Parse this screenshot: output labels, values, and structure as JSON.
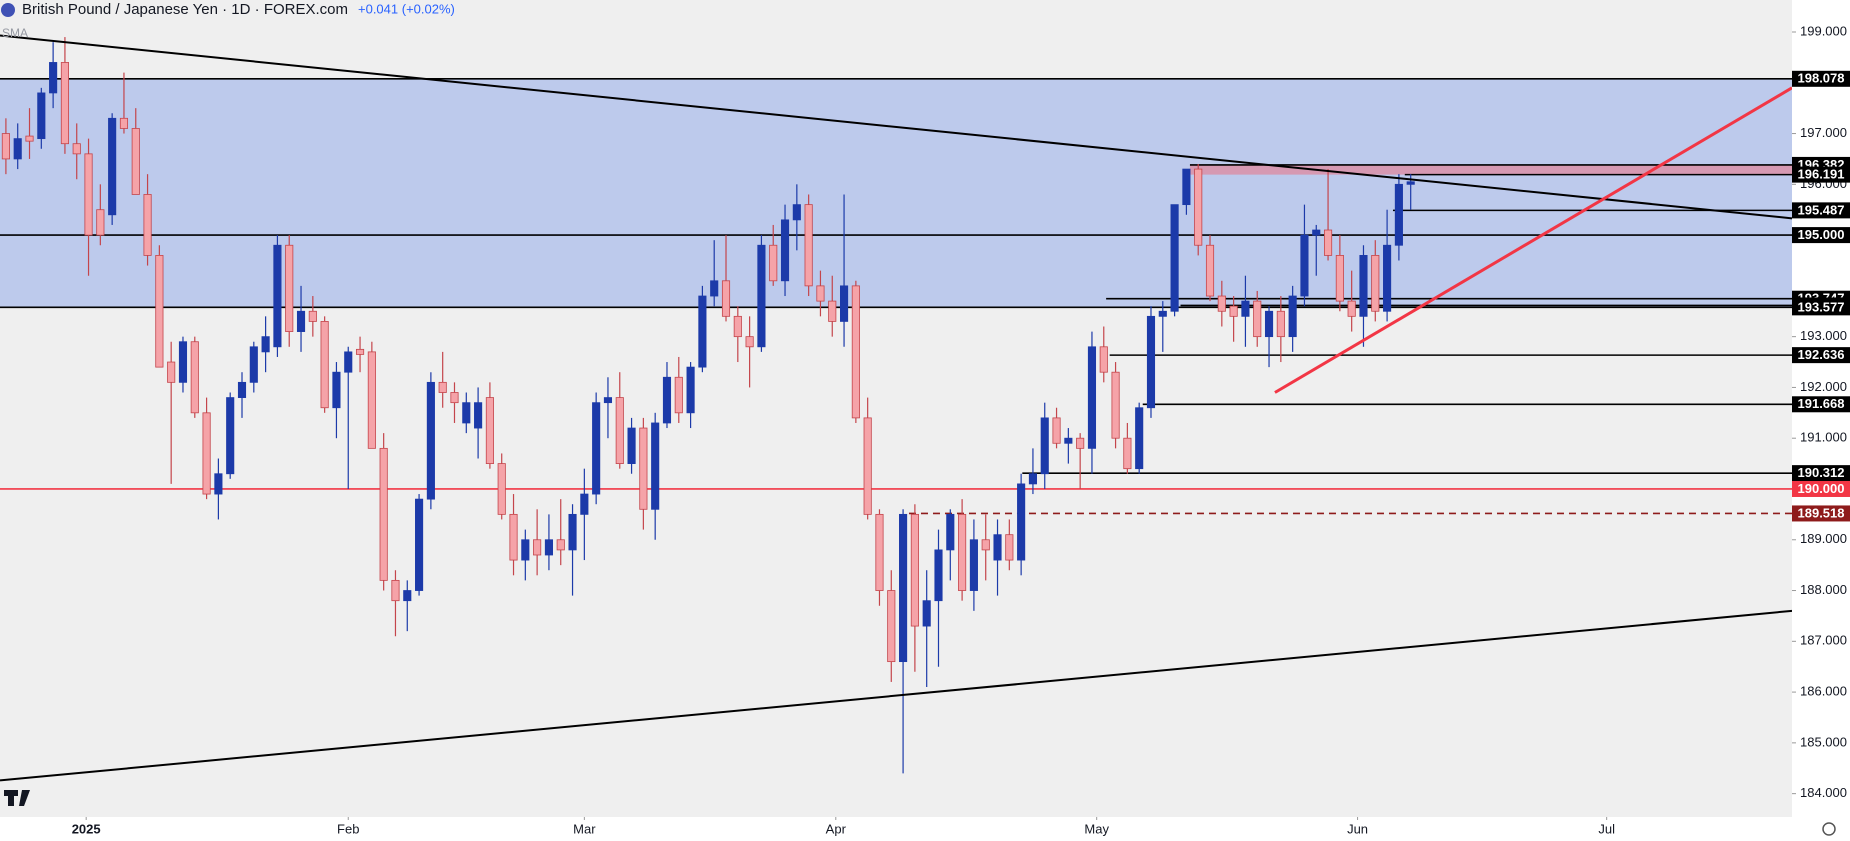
{
  "chart_data": {
    "type": "candlestick",
    "title": "British Pound / Japanese Yen · 1D · FOREX.com",
    "change": "+0.041 (+0.02%)",
    "indicator": "SMA",
    "up_color": "#1c3aa9",
    "down_color": "#f5a3a8",
    "down_border": "#c4454b",
    "xlim": [
      -0.5,
      151.3
    ],
    "ylim": [
      183.54,
      199.63
    ],
    "yticks": [
      {
        "value": 199,
        "label": "199.000"
      },
      {
        "value": 197,
        "label": "197.000"
      },
      {
        "value": 196,
        "label": "196.000"
      },
      {
        "value": 193,
        "label": "193.000"
      },
      {
        "value": 192,
        "label": "192.000"
      },
      {
        "value": 191,
        "label": "191.000"
      },
      {
        "value": 189,
        "label": "189.000"
      },
      {
        "value": 188,
        "label": "188.000"
      },
      {
        "value": 187,
        "label": "187.000"
      },
      {
        "value": 186,
        "label": "186.000"
      },
      {
        "value": 185,
        "label": "185.000"
      },
      {
        "value": 184,
        "label": "184.000"
      }
    ],
    "xticks": [
      {
        "value": 6.8,
        "label": "2025"
      },
      {
        "value": 29,
        "label": "Feb"
      },
      {
        "value": 49,
        "label": "Mar"
      },
      {
        "value": 70.3,
        "label": "Apr"
      },
      {
        "value": 92.4,
        "label": "May"
      },
      {
        "value": 114.5,
        "label": "Jun"
      },
      {
        "value": 135.6,
        "label": "Jul"
      }
    ],
    "zones": [
      {
        "low": 193.577,
        "high": 198.078,
        "from": -0.5,
        "color": "rgba(120,150,230,0.42)"
      },
      {
        "low": 196.191,
        "high": 196.382,
        "from": 100.3,
        "color": "rgba(230,120,140,0.6)"
      }
    ],
    "levels": [
      {
        "value": 198.078,
        "label": "198.078",
        "from": -0.5,
        "color": "#000000",
        "box": "#000000"
      },
      {
        "value": 196.382,
        "label": "196.382",
        "from": 100.3,
        "color": "#000000",
        "box": "#000000"
      },
      {
        "value": 196.191,
        "label": "196.191",
        "from": 118.5,
        "color": "#000000",
        "box": "#000000"
      },
      {
        "value": 195.487,
        "label": "195.487",
        "from": 117.5,
        "color": "#000000",
        "box": "#000000"
      },
      {
        "value": 195.0,
        "label": "195.000",
        "from": -0.5,
        "color": "#000000",
        "box": "#000000"
      },
      {
        "value": 193.747,
        "label": "193.747",
        "from": 93.2,
        "color": "#000000",
        "box": "#000000"
      },
      {
        "value": 193.614,
        "label": "193.614",
        "from": 99.5,
        "color": "#000000",
        "box": "#000000"
      },
      {
        "value": 193.577,
        "label": "193.577",
        "from": -0.5,
        "color": "#000000",
        "box": "#000000"
      },
      {
        "value": 192.636,
        "label": "192.636",
        "from": 93.5,
        "color": "#000000",
        "box": "#000000"
      },
      {
        "value": 191.668,
        "label": "191.668",
        "from": 96.3,
        "color": "#000000",
        "box": "#000000"
      },
      {
        "value": 190.312,
        "label": "190.312",
        "from": 86.1,
        "color": "#000000",
        "box": "#000000"
      },
      {
        "value": 190.0,
        "label": "190.000",
        "from": -0.5,
        "color": "#f23645",
        "box": "#f23645"
      },
      {
        "value": 189.518,
        "label": "189.518",
        "from": 76.5,
        "color": "#8e1b1b",
        "box": "#8e1b1b",
        "dashed": true
      }
    ],
    "trendlines": [
      {
        "x": [
          -0.5,
          151.3
        ],
        "y": [
          198.93,
          195.33
        ],
        "color": "#000000"
      },
      {
        "x": [
          -0.5,
          151.3
        ],
        "y": [
          184.26,
          187.6
        ],
        "color": "#000000"
      },
      {
        "x": [
          107.5,
          151.3
        ],
        "y": [
          191.9,
          197.9
        ],
        "color": "#f23645"
      }
    ],
    "ohlc": [
      [
        197.0,
        197.3,
        196.2,
        196.5
      ],
      [
        196.5,
        197.2,
        196.3,
        196.9
      ],
      [
        196.95,
        197.5,
        196.5,
        196.85
      ],
      [
        196.9,
        197.9,
        196.7,
        197.8
      ],
      [
        197.8,
        198.8,
        197.5,
        198.4
      ],
      [
        198.4,
        198.9,
        196.6,
        196.8
      ],
      [
        196.8,
        197.2,
        196.1,
        196.6
      ],
      [
        196.6,
        196.9,
        194.2,
        195.0
      ],
      [
        195.5,
        196.0,
        194.8,
        195.0
      ],
      [
        195.4,
        197.4,
        195.2,
        197.3
      ],
      [
        197.3,
        198.2,
        197.0,
        197.1
      ],
      [
        197.1,
        197.5,
        195.8,
        195.8
      ],
      [
        195.8,
        196.2,
        194.4,
        194.6
      ],
      [
        194.6,
        194.8,
        192.4,
        192.4
      ],
      [
        192.5,
        192.9,
        190.1,
        192.1
      ],
      [
        192.1,
        193.0,
        191.9,
        192.9
      ],
      [
        192.9,
        193.0,
        191.4,
        191.5
      ],
      [
        191.5,
        191.8,
        189.8,
        189.9
      ],
      [
        189.9,
        190.6,
        189.4,
        190.3
      ],
      [
        190.3,
        191.9,
        190.2,
        191.8
      ],
      [
        191.8,
        192.3,
        191.4,
        192.1
      ],
      [
        192.1,
        192.9,
        191.9,
        192.8
      ],
      [
        192.7,
        193.4,
        192.3,
        193.0
      ],
      [
        192.8,
        195.0,
        192.6,
        194.8
      ],
      [
        194.8,
        195.0,
        192.8,
        193.1
      ],
      [
        193.1,
        194.0,
        192.7,
        193.5
      ],
      [
        193.5,
        193.8,
        193.0,
        193.3
      ],
      [
        193.3,
        193.4,
        191.5,
        191.6
      ],
      [
        191.6,
        192.5,
        191.0,
        192.3
      ],
      [
        192.3,
        192.8,
        190.0,
        192.7
      ],
      [
        192.75,
        193.0,
        192.3,
        192.65
      ],
      [
        192.7,
        192.9,
        190.8,
        190.8
      ],
      [
        190.8,
        191.1,
        188.0,
        188.2
      ],
      [
        188.2,
        188.4,
        187.1,
        187.8
      ],
      [
        187.8,
        188.2,
        187.2,
        188.0
      ],
      [
        188.0,
        189.9,
        187.9,
        189.8
      ],
      [
        189.8,
        192.3,
        189.6,
        192.1
      ],
      [
        192.1,
        192.7,
        191.6,
        191.9
      ],
      [
        191.9,
        192.1,
        191.3,
        191.7
      ],
      [
        191.3,
        191.9,
        191.1,
        191.7
      ],
      [
        191.2,
        192.0,
        190.6,
        191.7
      ],
      [
        191.8,
        192.1,
        190.4,
        190.5
      ],
      [
        190.5,
        190.7,
        189.4,
        189.5
      ],
      [
        189.5,
        189.9,
        188.3,
        188.6
      ],
      [
        188.6,
        189.2,
        188.2,
        189.0
      ],
      [
        189.0,
        189.6,
        188.3,
        188.7
      ],
      [
        188.7,
        189.5,
        188.4,
        189.0
      ],
      [
        189.0,
        189.8,
        188.5,
        188.8
      ],
      [
        188.8,
        189.7,
        187.9,
        189.5
      ],
      [
        189.5,
        190.4,
        188.6,
        189.9
      ],
      [
        189.9,
        191.9,
        189.7,
        191.7
      ],
      [
        191.7,
        192.2,
        191.0,
        191.8
      ],
      [
        191.8,
        192.3,
        190.4,
        190.5
      ],
      [
        190.5,
        191.4,
        190.3,
        191.2
      ],
      [
        191.2,
        191.4,
        189.2,
        189.6
      ],
      [
        189.6,
        191.5,
        189.0,
        191.3
      ],
      [
        191.3,
        192.5,
        191.2,
        192.2
      ],
      [
        192.2,
        192.6,
        191.3,
        191.5
      ],
      [
        191.5,
        192.5,
        191.2,
        192.4
      ],
      [
        192.4,
        194.0,
        192.3,
        193.8
      ],
      [
        193.8,
        194.9,
        193.6,
        194.1
      ],
      [
        194.1,
        195.0,
        193.3,
        193.4
      ],
      [
        193.4,
        193.6,
        192.5,
        193.0
      ],
      [
        193.0,
        193.4,
        192.0,
        192.8
      ],
      [
        192.8,
        195.0,
        192.7,
        194.8
      ],
      [
        194.8,
        195.2,
        194.0,
        194.1
      ],
      [
        194.1,
        195.6,
        193.8,
        195.3
      ],
      [
        195.3,
        196.0,
        194.7,
        195.6
      ],
      [
        195.6,
        195.8,
        193.8,
        194.0
      ],
      [
        194.0,
        194.3,
        193.4,
        193.7
      ],
      [
        193.7,
        194.2,
        193.0,
        193.3
      ],
      [
        193.3,
        195.8,
        192.8,
        194.0
      ],
      [
        194.0,
        194.1,
        191.3,
        191.4
      ],
      [
        191.4,
        191.8,
        189.4,
        189.5
      ],
      [
        189.5,
        189.6,
        187.7,
        188.0
      ],
      [
        188.0,
        188.4,
        186.2,
        186.6
      ],
      [
        186.6,
        189.6,
        184.4,
        189.5
      ],
      [
        189.5,
        189.7,
        186.4,
        187.3
      ],
      [
        187.3,
        188.4,
        186.1,
        187.8
      ],
      [
        187.8,
        189.2,
        186.5,
        188.8
      ],
      [
        188.8,
        189.6,
        188.2,
        189.5
      ],
      [
        189.5,
        189.8,
        187.8,
        188.0
      ],
      [
        188.0,
        189.4,
        187.6,
        189.0
      ],
      [
        189.0,
        189.5,
        188.2,
        188.8
      ],
      [
        188.6,
        189.4,
        187.9,
        189.1
      ],
      [
        189.1,
        189.4,
        188.4,
        188.6
      ],
      [
        188.6,
        190.3,
        188.3,
        190.1
      ],
      [
        190.1,
        190.8,
        189.9,
        190.3
      ],
      [
        190.3,
        191.7,
        190.0,
        191.4
      ],
      [
        191.4,
        191.6,
        190.8,
        190.9
      ],
      [
        190.9,
        191.2,
        190.5,
        191.0
      ],
      [
        191.0,
        191.1,
        190.0,
        190.8
      ],
      [
        190.8,
        193.1,
        190.3,
        192.8
      ],
      [
        192.8,
        193.2,
        192.1,
        192.3
      ],
      [
        192.3,
        192.5,
        190.8,
        191.0
      ],
      [
        191.0,
        191.3,
        190.3,
        190.4
      ],
      [
        190.4,
        191.7,
        190.3,
        191.6
      ],
      [
        191.6,
        193.6,
        191.4,
        193.4
      ],
      [
        193.4,
        193.7,
        192.7,
        193.5
      ],
      [
        193.5,
        195.6,
        193.4,
        195.6
      ],
      [
        195.6,
        196.3,
        195.4,
        196.3
      ],
      [
        196.3,
        196.4,
        194.6,
        194.8
      ],
      [
        194.8,
        195.0,
        193.7,
        193.8
      ],
      [
        193.8,
        194.1,
        193.2,
        193.5
      ],
      [
        193.6,
        193.8,
        192.9,
        193.4
      ],
      [
        193.4,
        194.2,
        192.8,
        193.7
      ],
      [
        193.7,
        193.9,
        192.8,
        193.0
      ],
      [
        193.0,
        193.6,
        192.4,
        193.5
      ],
      [
        193.5,
        193.8,
        192.5,
        193.0
      ],
      [
        193.0,
        194.0,
        192.7,
        193.8
      ],
      [
        193.8,
        195.6,
        193.6,
        195.0
      ],
      [
        195.0,
        195.2,
        194.2,
        195.1
      ],
      [
        195.1,
        196.3,
        194.5,
        194.6
      ],
      [
        194.6,
        195.0,
        193.5,
        193.7
      ],
      [
        193.7,
        194.3,
        193.1,
        193.4
      ],
      [
        193.4,
        194.8,
        192.8,
        194.6
      ],
      [
        194.6,
        194.9,
        193.3,
        193.5
      ],
      [
        193.5,
        195.5,
        193.3,
        194.8
      ],
      [
        194.8,
        196.2,
        194.5,
        196.0
      ],
      [
        196.0,
        196.2,
        195.5,
        196.05
      ]
    ]
  }
}
